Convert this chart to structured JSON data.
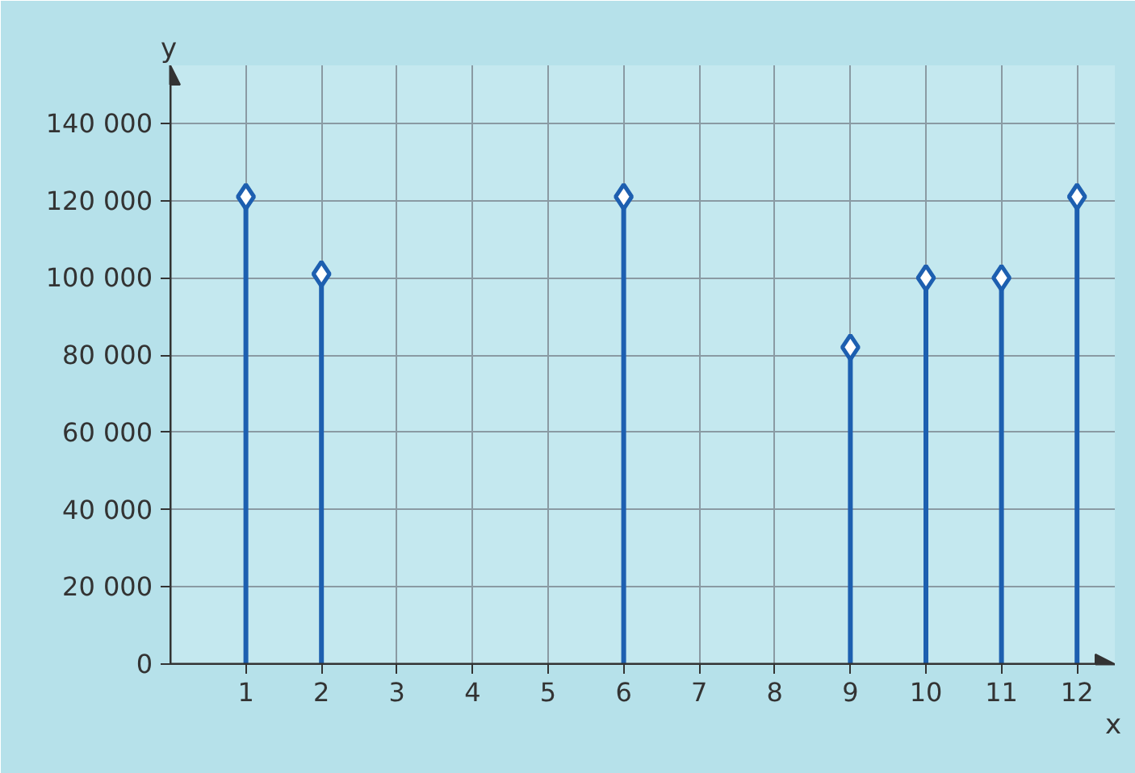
{
  "chart_data": {
    "type": "lollipop",
    "xlabel": "x",
    "ylabel": "y",
    "x": [
      1,
      2,
      3,
      4,
      5,
      6,
      7,
      8,
      9,
      10,
      11,
      12
    ],
    "series": [
      {
        "color": "#1d5fb0",
        "values": [
          121000,
          101000,
          null,
          null,
          null,
          121000,
          null,
          null,
          82000,
          100000,
          100000,
          121000
        ]
      }
    ],
    "xlim": [
      0,
      12.5
    ],
    "xticks": [
      1,
      2,
      3,
      4,
      5,
      6,
      7,
      8,
      9,
      10,
      11,
      12
    ],
    "ylim": [
      0,
      155000
    ],
    "yticks": [
      {
        "value": 0,
        "label": "0"
      },
      {
        "value": 20000,
        "label": "20 000"
      },
      {
        "value": 40000,
        "label": "40 000"
      },
      {
        "value": 60000,
        "label": "60 000"
      },
      {
        "value": 80000,
        "label": "80 000"
      },
      {
        "value": 100000,
        "label": "100 000"
      },
      {
        "value": 120000,
        "label": "120 000"
      },
      {
        "value": 140000,
        "label": "140 000"
      }
    ],
    "grid": true,
    "marker": "diamond"
  }
}
